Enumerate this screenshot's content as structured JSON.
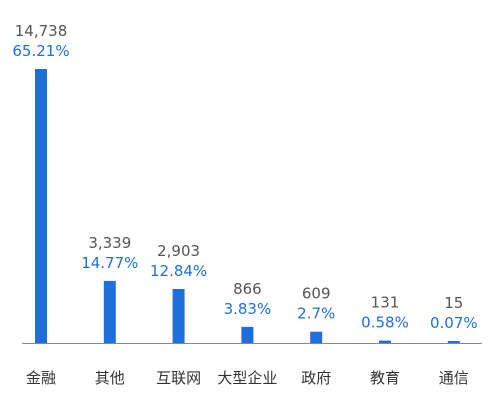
{
  "chart_data": {
    "type": "bar",
    "categories": [
      "金融",
      "其他",
      "互联网",
      "大型企业",
      "政府",
      "教育",
      "通信"
    ],
    "values": [
      14738,
      3339,
      2903,
      866,
      609,
      131,
      15
    ],
    "value_labels": [
      "14,738",
      "3,339",
      "2,903",
      "866",
      "609",
      "131",
      "15"
    ],
    "percent_labels": [
      "65.21%",
      "14.77%",
      "12.84%",
      "3.83%",
      "2.7%",
      "0.58%",
      "0.07%"
    ],
    "title": "",
    "xlabel": "",
    "ylabel": "",
    "ylim": [
      0,
      14738
    ],
    "grid": false,
    "legend": "none"
  },
  "colors": {
    "bar": "#1F6FDB",
    "axis": "#888888",
    "count_text": "#555555",
    "percent_text": "#1F6FDB",
    "category_text": "#333333"
  }
}
